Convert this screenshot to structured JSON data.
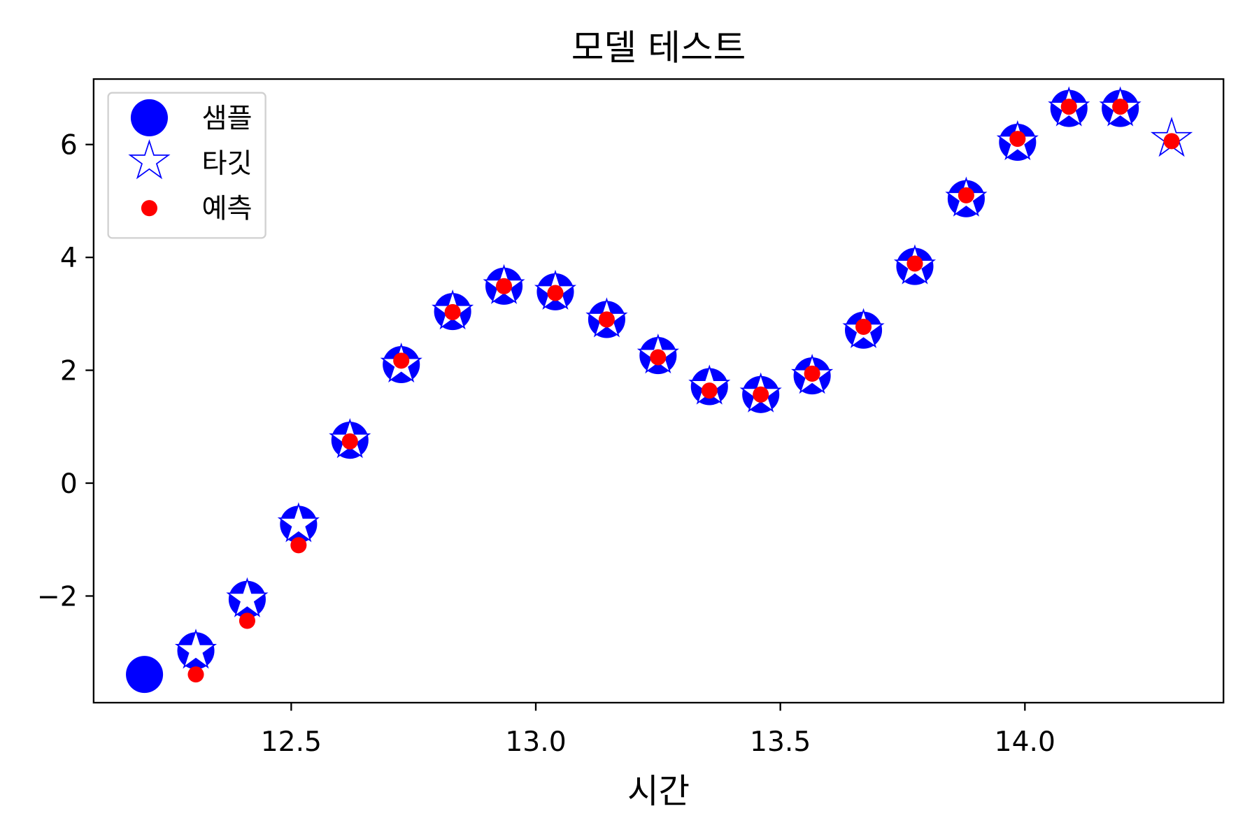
{
  "chart_data": {
    "type": "scatter",
    "title": "모델 테스트",
    "xlabel": "시간",
    "ylabel": "",
    "xlim": [
      12.096,
      14.406
    ],
    "ylim": [
      -3.89,
      7.16
    ],
    "xticks": [
      12.5,
      13.0,
      13.5,
      14.0
    ],
    "xtick_labels": [
      "12.5",
      "13.0",
      "13.5",
      "14.0"
    ],
    "yticks": [
      -2,
      0,
      2,
      4,
      6
    ],
    "ytick_labels": [
      "−2",
      "0",
      "2",
      "4",
      "6"
    ],
    "grid": false,
    "legend": {
      "position": "top-left",
      "entries": [
        "샘플",
        "타깃",
        "예측"
      ]
    },
    "colors": {
      "sample": "#0000ff",
      "target_edge": "#0000ff",
      "target_fill": "#ffffff",
      "prediction": "#ff0000"
    },
    "series": [
      {
        "name": "샘플",
        "marker": "circle",
        "x": [
          12.2,
          12.305,
          12.41,
          12.515,
          12.62,
          12.725,
          12.83,
          12.935,
          13.04,
          13.145,
          13.25,
          13.355,
          13.46,
          13.565,
          13.67,
          13.775,
          13.88,
          13.985,
          14.09,
          14.195
        ],
        "y": [
          -3.39,
          -2.97,
          -2.06,
          -0.73,
          0.76,
          2.1,
          3.04,
          3.49,
          3.39,
          2.9,
          2.26,
          1.71,
          1.57,
          1.9,
          2.71,
          3.84,
          5.04,
          6.04,
          6.64,
          6.64
        ]
      },
      {
        "name": "타깃",
        "marker": "star",
        "x": [
          12.305,
          12.41,
          12.515,
          12.62,
          12.725,
          12.83,
          12.935,
          13.04,
          13.145,
          13.25,
          13.355,
          13.46,
          13.565,
          13.67,
          13.775,
          13.88,
          13.985,
          14.09,
          14.195,
          14.3
        ],
        "y": [
          -2.97,
          -2.06,
          -0.73,
          0.76,
          2.1,
          3.04,
          3.49,
          3.39,
          2.9,
          2.26,
          1.71,
          1.57,
          1.9,
          2.71,
          3.84,
          5.04,
          6.04,
          6.64,
          6.64,
          6.1
        ]
      },
      {
        "name": "예측",
        "marker": "dot",
        "x": [
          12.305,
          12.41,
          12.515,
          12.62,
          12.725,
          12.83,
          12.935,
          13.04,
          13.145,
          13.25,
          13.355,
          13.46,
          13.565,
          13.67,
          13.775,
          13.88,
          13.985,
          14.09,
          14.195,
          14.3
        ],
        "y": [
          -3.39,
          -2.44,
          -1.1,
          0.74,
          2.17,
          3.03,
          3.49,
          3.37,
          2.9,
          2.23,
          1.64,
          1.57,
          1.94,
          2.77,
          3.89,
          5.1,
          6.1,
          6.67,
          6.67,
          6.06
        ]
      }
    ]
  }
}
